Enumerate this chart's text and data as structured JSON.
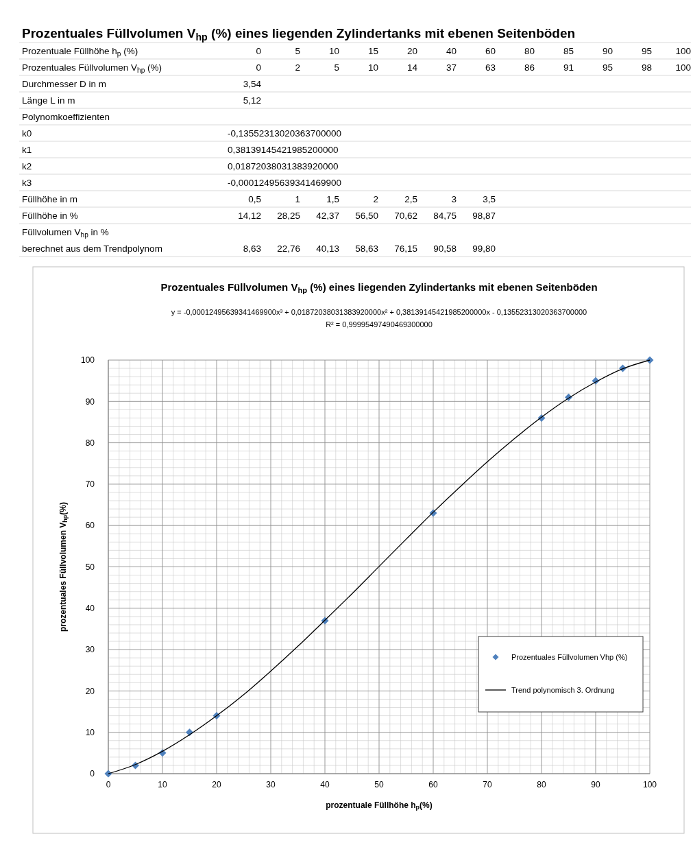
{
  "chart_data": {
    "type": "scatter",
    "title": "Prozentuales Füllvolumen V$_{hp}$ (%) eines liegenden Zylindertanks mit ebenen Seitenböden",
    "subtitle": "y = -0,00012495639341469900x³ + 0,01872038031383920000x² + 0,38139145421985200000x - 0,13552313020363700000\nR² = 0,99995497490469300000",
    "xlabel": "prozentuale Füllhöhe h$_{p}$(%)",
    "ylabel": "prozentuales Füllvolumen V$_{hp}$(%)",
    "annotations": [
      "Prozentuales Füllvolumen V$_{hp}$ (%) eines liegenden Zylindertanks mit ebenen Seitenböden",
      "Prozentuale Füllhöhe h$_{p}$ (%)\t0\t5\t10\t15\t20\t40\t60\t80\t85\t90\t95\t100",
      "Prozentuales Füllvolumen V$_{hp}$ (%)\t0\t2\t5\t10\t14\t37\t63\t86\t91\t95\t98\t100",
      "Durchmesser D in m\t3,54",
      "Länge L in m\t5,12",
      "Polynomkoeffizienten",
      "k0\t-0,13552313020363700000",
      "k1\t0,38139145421985200000",
      "k2\t0,01872038031383920000",
      "k3\t-0,00012495639341469900",
      "Füllhöhe in m\t0,5\t1\t1,5\t2\t2,5\t3\t3,5",
      "Füllhöhe in %\t14,12\t28,25\t42,37\t56,50\t70,62\t84,75\t98,87",
      "Füllvolumen V$_{hp}$ in %\nberechnet aus dem Trendpolynom\t8,63\t22,76\t40,13\t58,63\t76,15\t90,58\t99,80"
    ],
    "x": [
      0,
      5,
      10,
      15,
      20,
      40,
      60,
      80,
      85,
      90,
      95,
      100
    ],
    "series": [
      {
        "name": "Prozentuales Füllvolumen Vhp (%)",
        "color": "#4f81bd",
        "marker": "diamond",
        "values": [
          0,
          2,
          5,
          10,
          14,
          37,
          63,
          86,
          91,
          95,
          98,
          100
        ]
      },
      {
        "name": "Trend polynomisch 3. Ordnung",
        "type": "line",
        "color": "#000000",
        "marker": "none",
        "line_style": "solid",
        "x": [
          0,
          5,
          10,
          15,
          20,
          25,
          30,
          35,
          40,
          45,
          50,
          55,
          60,
          65,
          70,
          75,
          80,
          85,
          90,
          95,
          100
        ],
        "values": [
          0,
          2.2,
          5.4,
          9.4,
          14.0,
          19.1,
          24.8,
          30.8,
          37.1,
          43.5,
          50.1,
          56.7,
          63.2,
          69.4,
          75.4,
          81.0,
          86.2,
          90.8,
          94.7,
          97.9,
          100
        ]
      }
    ],
    "xlim": [
      0,
      100
    ],
    "xticks": [
      0,
      10,
      20,
      30,
      40,
      50,
      60,
      70,
      80,
      90,
      100
    ],
    "ylim": [
      0,
      100
    ],
    "yticks": [
      0,
      10,
      20,
      30,
      40,
      50,
      60,
      70,
      80,
      90,
      100
    ],
    "grid": true,
    "legend": "bottom right"
  }
}
